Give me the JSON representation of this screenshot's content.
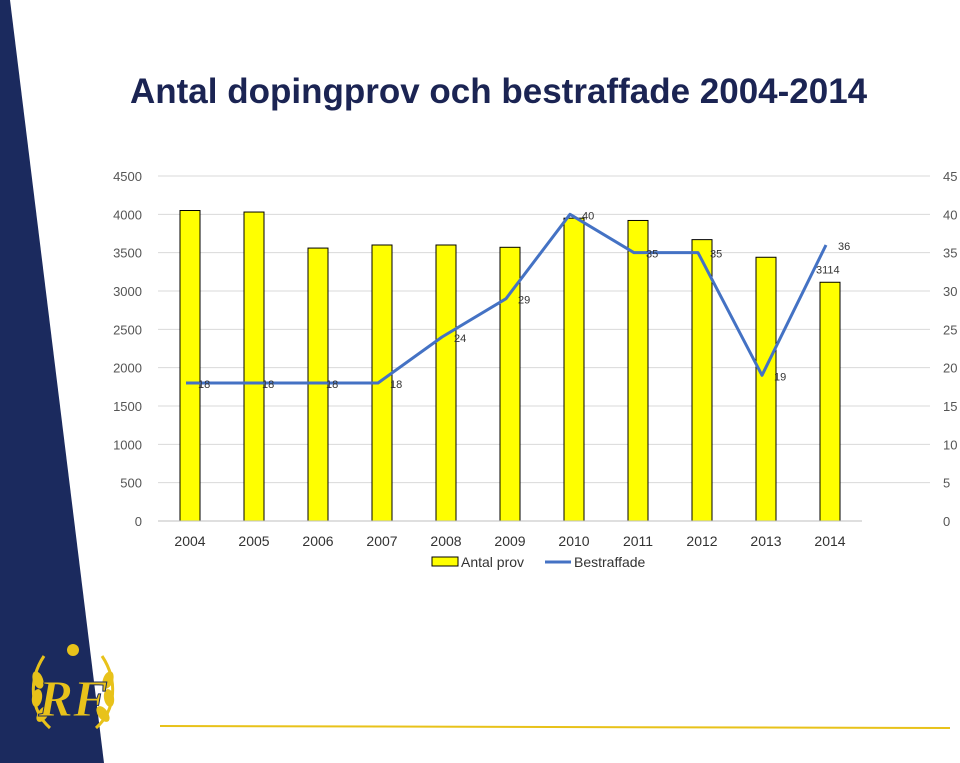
{
  "slide": {
    "title": "Antal dopingprov och bestraffade 2004-2014",
    "colors": {
      "navy": "#1b2a5e",
      "gold": "#e8c21a",
      "bar_fill": "#ffff00",
      "line": "#4472c4"
    }
  },
  "logo": {
    "icon": "rf-emblem-icon",
    "text": "RF"
  },
  "chart_data": {
    "type": "bar",
    "categories": [
      "2004",
      "2005",
      "2006",
      "2007",
      "2008",
      "2009",
      "2010",
      "2011",
      "2012",
      "2013",
      "2014"
    ],
    "series": [
      {
        "name": "Antal prov",
        "type": "bar",
        "axis": "left",
        "values": [
          4050,
          4030,
          3560,
          3600,
          3600,
          3570,
          3950,
          3920,
          3670,
          3440,
          3114
        ]
      },
      {
        "name": "Bestraffade",
        "type": "line",
        "axis": "right",
        "values": [
          18,
          18,
          18,
          18,
          24,
          29,
          40,
          35,
          35,
          19,
          36
        ],
        "labels": [
          "18",
          "18",
          "18",
          "18",
          "24",
          "29",
          "40",
          "35",
          "35",
          "19",
          "36"
        ]
      }
    ],
    "bar_value_labels": {
      "10": "3114"
    },
    "y_left": {
      "min": 0,
      "max": 4500,
      "ticks": [
        0,
        500,
        1000,
        1500,
        2000,
        2500,
        3000,
        3500,
        4000,
        4500
      ]
    },
    "y_right": {
      "min": 0,
      "max": 45,
      "ticks": [
        0,
        5,
        10,
        15,
        20,
        25,
        30,
        35,
        40,
        45
      ]
    },
    "grid": true,
    "legend": {
      "position": "bottom",
      "entries": [
        "Antal prov",
        "Bestraffade"
      ]
    }
  }
}
